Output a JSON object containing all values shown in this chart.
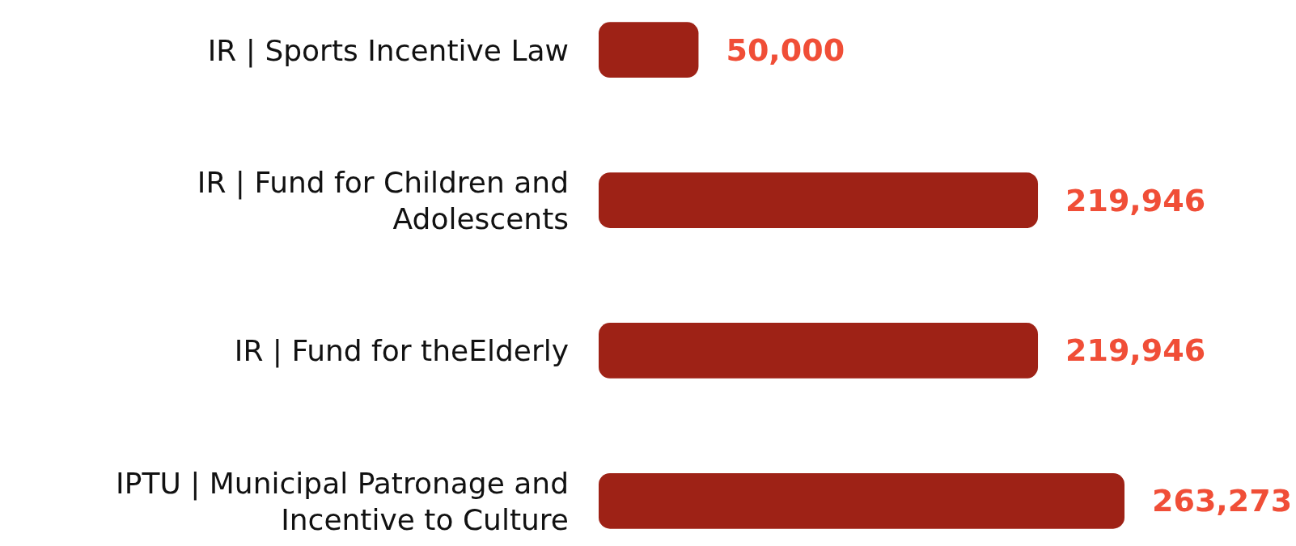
{
  "chart_data": {
    "type": "bar",
    "orientation": "horizontal",
    "categories": [
      "IR | Sports Incentive Law",
      "IR | Fund for Children and Adolescents",
      "IR | Fund for theElderly",
      "IPTU | Municipal Patronage and Incentive to Culture"
    ],
    "values": [
      50000,
      219946,
      219946,
      263273
    ],
    "color": "#9e2216",
    "data_labels": true,
    "value_labels": [
      "50,000",
      "219,946",
      "219,946",
      "263,273"
    ],
    "grid": false
  }
}
